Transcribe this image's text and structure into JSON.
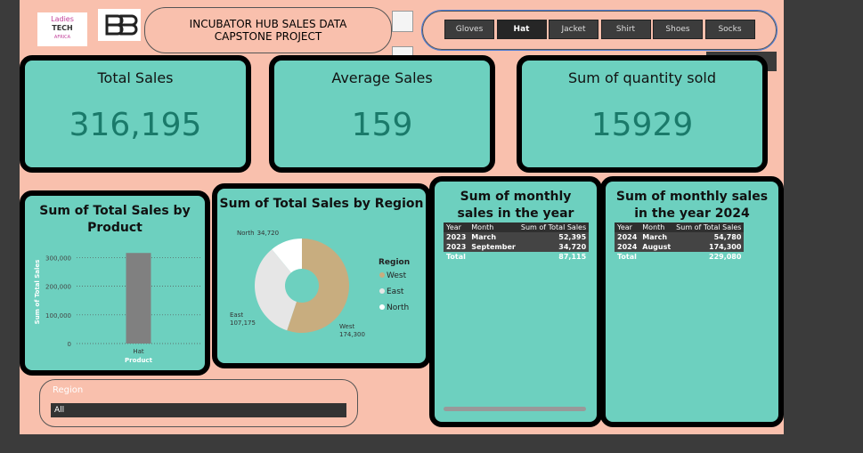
{
  "header": {
    "title": "INCUBATOR HUB SALES DATA CAPSTONE PROJECT",
    "logo_text": [
      "Ladies",
      "TECH",
      "AFRICA"
    ]
  },
  "slicer": {
    "buttons": [
      "Gloves",
      "Hat",
      "Jacket",
      "Shirt",
      "Shoes",
      "Socks"
    ],
    "selected_index": 1
  },
  "cards": [
    {
      "label": "Total Sales",
      "value": "316,195"
    },
    {
      "label": "Average Sales",
      "value": "159"
    },
    {
      "label": "Sum of quantity sold",
      "value": "15929"
    }
  ],
  "chart_data": [
    {
      "type": "bar",
      "title": "Sum of Total Sales by Product",
      "categories": [
        "Hat"
      ],
      "values": [
        316195
      ],
      "color": "#808080",
      "ylim": [
        0,
        320000
      ],
      "yticks": [
        0,
        {
          "value": 100000,
          "label": "100,000"
        },
        {
          "value": 200000,
          "label": "200,000"
        },
        {
          "value": 300000,
          "label": "300,000"
        }
      ],
      "grid": true,
      "ylabel": "Sum of Total Sales",
      "xlabel": "Product"
    },
    {
      "type": "pie",
      "title": "Sum of Total Sales by Region",
      "categories": [
        "West",
        "East",
        "North"
      ],
      "values": [
        174300,
        107175,
        34720
      ],
      "value_labels": [
        "174,300",
        "107,175",
        "34,720"
      ],
      "colors": [
        "#c8ad7f",
        "#e6e6e6",
        "#ffffff"
      ],
      "legend_title": "Region",
      "donut": true
    }
  ],
  "tables": [
    {
      "title": "Sum of monthly sales in the year 2023",
      "columns": [
        "Year",
        "Month",
        "Sum of Total Sales"
      ],
      "rows": [
        [
          "2023",
          "March",
          "52,395"
        ],
        [
          "2023",
          "September",
          "34,720"
        ]
      ],
      "total": [
        "Total",
        "87,115"
      ]
    },
    {
      "title": "Sum of monthly sales in the year 2024",
      "columns": [
        "Year",
        "Month",
        "Sum of Total Sales"
      ],
      "rows": [
        [
          "2024",
          "March",
          "54,780"
        ],
        [
          "2024",
          "August",
          "174,300"
        ]
      ],
      "total": [
        "Total",
        "229,080"
      ]
    }
  ],
  "region_slicer": {
    "title": "Region",
    "value": "All"
  }
}
